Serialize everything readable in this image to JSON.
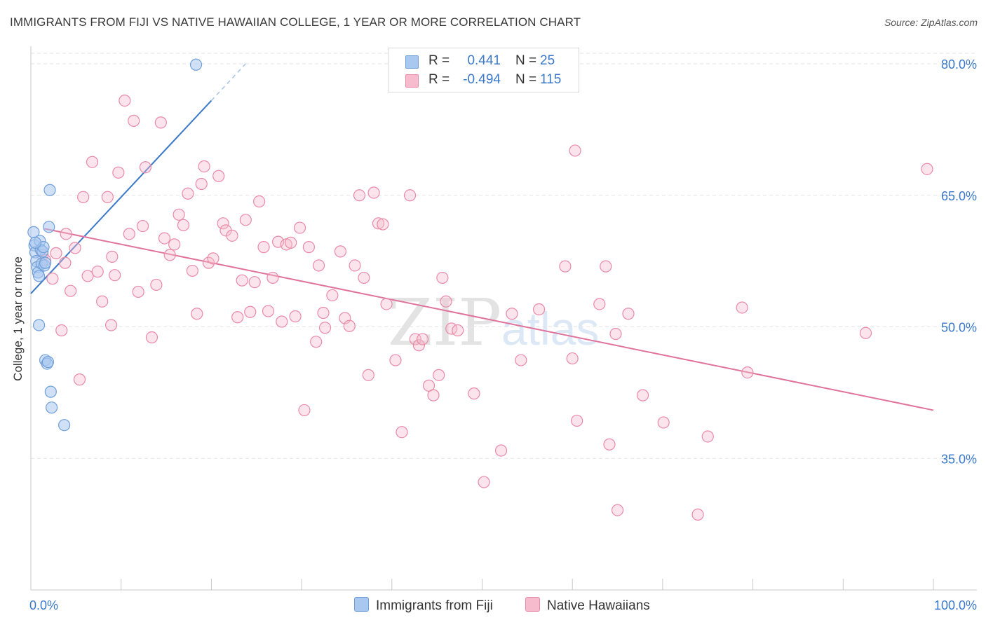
{
  "title": "IMMIGRANTS FROM FIJI VS NATIVE HAWAIIAN COLLEGE, 1 YEAR OR MORE CORRELATION CHART",
  "source": "Source: ZipAtlas.com",
  "watermark": "ZIPatlas",
  "legend_top": {
    "rows": [
      {
        "r_label": "R =",
        "r_value": "0.441",
        "n_label": "N =",
        "n_value": "25",
        "color": "#a9c8f0",
        "stroke": "#6f9fd8"
      },
      {
        "r_label": "R =",
        "r_value": "-0.494",
        "n_label": "N =",
        "n_value": "115",
        "color": "#f6bccd",
        "stroke": "#e98aa8"
      }
    ]
  },
  "legend_bottom": {
    "items": [
      {
        "label": "Immigrants from Fiji",
        "color": "#a9c8f0",
        "stroke": "#6f9fd8"
      },
      {
        "label": "Native Hawaiians",
        "color": "#f6bccd",
        "stroke": "#e98aa8"
      }
    ]
  },
  "chart_data": {
    "type": "scatter",
    "title": "IMMIGRANTS FROM FIJI VS NATIVE HAWAIIAN COLLEGE, 1 YEAR OR MORE CORRELATION CHART",
    "xlabel": "",
    "ylabel": "College, 1 year or more",
    "xlim": [
      0,
      100
    ],
    "ylim": [
      20,
      82
    ],
    "x_ticks": [
      "0.0%",
      "100.0%"
    ],
    "y_ticks": [
      {
        "value": 35,
        "label": "35.0%"
      },
      {
        "value": 50,
        "label": "50.0%"
      },
      {
        "value": 65,
        "label": "65.0%"
      },
      {
        "value": 80,
        "label": "80.0%"
      }
    ],
    "grid": "horizontal dashed",
    "colors": {
      "fiji": "#3a78c9",
      "hawaiian": "#e0729b",
      "tick_label": "#3a78c9"
    },
    "series": [
      {
        "name": "Immigrants from Fiji",
        "points": [
          [
            0.3,
            60.8
          ],
          [
            0.4,
            59.3
          ],
          [
            0.5,
            58.5
          ],
          [
            0.6,
            57.5
          ],
          [
            0.7,
            56.8
          ],
          [
            0.8,
            56.2
          ],
          [
            0.9,
            55.8
          ],
          [
            0.9,
            50.2
          ],
          [
            1.0,
            59.8
          ],
          [
            1.1,
            58.8
          ],
          [
            1.2,
            57.2
          ],
          [
            1.3,
            58.6
          ],
          [
            1.4,
            59.1
          ],
          [
            1.5,
            57.0
          ],
          [
            1.6,
            57.3
          ],
          [
            1.6,
            46.2
          ],
          [
            1.8,
            45.8
          ],
          [
            1.9,
            46.0
          ],
          [
            2.0,
            61.4
          ],
          [
            2.1,
            65.6
          ],
          [
            2.2,
            42.6
          ],
          [
            2.3,
            40.8
          ],
          [
            3.7,
            38.8
          ],
          [
            18.3,
            79.9
          ],
          [
            0.5,
            59.6
          ]
        ],
        "trend": {
          "x": [
            0,
            20
          ],
          "y": [
            53.8,
            75.8
          ],
          "dashed_to": {
            "x": 23.8,
            "y": 80.0
          }
        }
      },
      {
        "name": "Native Hawaiians",
        "points": [
          [
            1.3,
            58.2
          ],
          [
            1.6,
            57.6
          ],
          [
            2.4,
            55.5
          ],
          [
            2.8,
            58.4
          ],
          [
            3.4,
            49.6
          ],
          [
            3.9,
            60.6
          ],
          [
            4.4,
            54.1
          ],
          [
            4.9,
            59.0
          ],
          [
            5.4,
            44.0
          ],
          [
            5.8,
            64.8
          ],
          [
            6.3,
            55.8
          ],
          [
            6.8,
            68.8
          ],
          [
            7.4,
            56.3
          ],
          [
            7.9,
            52.9
          ],
          [
            8.5,
            64.8
          ],
          [
            8.9,
            50.2
          ],
          [
            9.3,
            55.9
          ],
          [
            9.7,
            67.6
          ],
          [
            10.4,
            75.8
          ],
          [
            10.9,
            60.6
          ],
          [
            11.4,
            73.5
          ],
          [
            11.9,
            54.0
          ],
          [
            12.4,
            61.5
          ],
          [
            12.7,
            68.2
          ],
          [
            13.4,
            48.8
          ],
          [
            13.9,
            54.8
          ],
          [
            14.4,
            73.3
          ],
          [
            14.8,
            60.1
          ],
          [
            15.4,
            58.2
          ],
          [
            15.9,
            59.4
          ],
          [
            16.4,
            62.8
          ],
          [
            16.9,
            61.6
          ],
          [
            17.4,
            65.2
          ],
          [
            17.9,
            56.4
          ],
          [
            18.4,
            51.5
          ],
          [
            18.9,
            66.3
          ],
          [
            19.2,
            68.3
          ],
          [
            19.7,
            57.3
          ],
          [
            20.2,
            57.8
          ],
          [
            20.8,
            67.2
          ],
          [
            21.3,
            61.8
          ],
          [
            21.6,
            61.0
          ],
          [
            22.3,
            60.4
          ],
          [
            22.9,
            51.1
          ],
          [
            23.4,
            55.3
          ],
          [
            23.8,
            62.2
          ],
          [
            24.3,
            51.7
          ],
          [
            24.8,
            55.1
          ],
          [
            25.3,
            64.3
          ],
          [
            25.8,
            59.1
          ],
          [
            26.3,
            51.8
          ],
          [
            26.8,
            55.6
          ],
          [
            27.4,
            59.7
          ],
          [
            27.8,
            50.6
          ],
          [
            28.3,
            59.4
          ],
          [
            28.8,
            59.6
          ],
          [
            29.3,
            51.2
          ],
          [
            29.8,
            61.3
          ],
          [
            30.3,
            40.5
          ],
          [
            30.8,
            59.1
          ],
          [
            31.6,
            48.3
          ],
          [
            31.9,
            57.0
          ],
          [
            32.4,
            51.6
          ],
          [
            32.6,
            49.9
          ],
          [
            33.4,
            53.6
          ],
          [
            34.3,
            58.6
          ],
          [
            34.8,
            51.0
          ],
          [
            35.3,
            50.1
          ],
          [
            35.9,
            57.0
          ],
          [
            36.4,
            65.0
          ],
          [
            36.9,
            55.6
          ],
          [
            37.4,
            44.5
          ],
          [
            38.0,
            65.3
          ],
          [
            38.5,
            61.8
          ],
          [
            39.0,
            61.7
          ],
          [
            39.4,
            52.6
          ],
          [
            40.4,
            46.2
          ],
          [
            41.1,
            38.0
          ],
          [
            42.0,
            65.0
          ],
          [
            42.6,
            48.6
          ],
          [
            43.0,
            47.9
          ],
          [
            43.4,
            48.6
          ],
          [
            44.1,
            43.3
          ],
          [
            44.6,
            42.2
          ],
          [
            45.2,
            44.5
          ],
          [
            45.6,
            55.6
          ],
          [
            46.0,
            52.9
          ],
          [
            46.6,
            49.8
          ],
          [
            47.3,
            49.6
          ],
          [
            49.1,
            42.4
          ],
          [
            50.2,
            32.3
          ],
          [
            52.1,
            35.9
          ],
          [
            53.3,
            51.5
          ],
          [
            54.3,
            46.2
          ],
          [
            56.3,
            52.0
          ],
          [
            59.2,
            56.9
          ],
          [
            60.0,
            46.4
          ],
          [
            60.3,
            70.1
          ],
          [
            60.5,
            39.3
          ],
          [
            63.0,
            52.6
          ],
          [
            63.7,
            56.9
          ],
          [
            64.1,
            36.6
          ],
          [
            64.8,
            49.2
          ],
          [
            65.0,
            29.1
          ],
          [
            66.2,
            51.5
          ],
          [
            67.8,
            42.2
          ],
          [
            70.1,
            39.1
          ],
          [
            73.9,
            28.6
          ],
          [
            75.0,
            37.5
          ],
          [
            78.8,
            52.2
          ],
          [
            79.4,
            44.8
          ],
          [
            92.5,
            49.3
          ],
          [
            99.3,
            68.0
          ],
          [
            3.8,
            57.3
          ],
          [
            9.0,
            58.0
          ]
        ],
        "trend": {
          "x": [
            1.5,
            100
          ],
          "y": [
            61.2,
            40.5
          ]
        }
      }
    ]
  }
}
